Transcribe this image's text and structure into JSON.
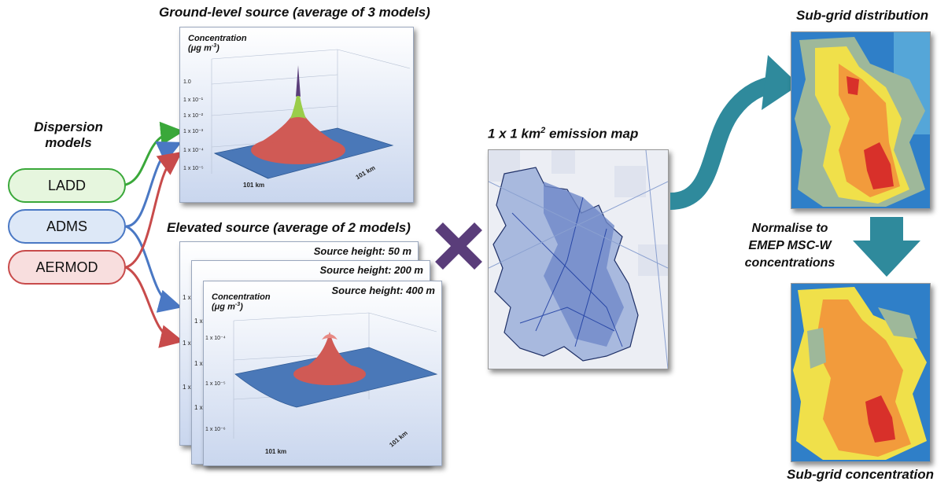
{
  "captions": {
    "ground_title": "Ground-level source (average of 3 models)",
    "elevated_title": "Elevated source (average of 2 models)",
    "dispersion_line1": "Dispersion",
    "dispersion_line2": "models",
    "emission_prefix": "1 x 1 km",
    "emission_sup": "2",
    "emission_suffix": " emission map",
    "subgrid_distribution": "Sub-grid distribution",
    "normalise_line1": "Normalise to",
    "normalise_line2": "EMEP MSC-W",
    "normalise_line3": "concentrations",
    "subgrid_concentration": "Sub-grid concentration"
  },
  "models": [
    {
      "label": "LADD",
      "color": "#3aa83a",
      "fill": "#e6f6de"
    },
    {
      "label": "ADMS",
      "color": "#4a78c4",
      "fill": "#dde8f7"
    },
    {
      "label": "AERMOD",
      "color": "#c84b4b",
      "fill": "#f8dede"
    }
  ],
  "ground_plot": {
    "conc_line1": "Concentration",
    "conc_line2": "(μg m",
    "conc_sup": "-3",
    "conc_end": ")",
    "ticks": [
      "1.0",
      "1 x 10⁻¹",
      "1 x 10⁻²",
      "1 x 10⁻³",
      "1 x 10⁻⁴",
      "1 x 10⁻⁵"
    ],
    "axis_x": "101 km",
    "axis_y": "101 km"
  },
  "elevated_plots": {
    "heights": [
      "Source height: 50 m",
      "Source height: 200 m",
      "Source height: 400 m"
    ],
    "back_tick": "1 x",
    "front_ticks": [
      "1 x 10⁻⁴",
      "1 x 10⁻⁵",
      "1 x 10⁻⁶"
    ],
    "axis_x": "101 km",
    "axis_y": "101 km"
  },
  "colors": {
    "arrow_teal": "#2f8a9c",
    "cross": "#5a3d7a",
    "surface_blue": "#4a78b8",
    "peak_red": "#d05a55"
  }
}
